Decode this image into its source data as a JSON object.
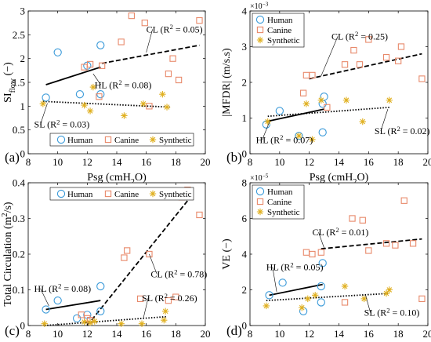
{
  "chart_data": [
    {
      "id": "a",
      "type": "scatter",
      "panel_label": "(a)",
      "xlabel": "Psg (cmH2O)",
      "ylabel": "SIflow (−)",
      "xlim": [
        8,
        20
      ],
      "ylim": [
        0,
        3
      ],
      "xticks": [
        8,
        10,
        12,
        14,
        16,
        18,
        20
      ],
      "yticks": [
        0,
        0.5,
        1,
        1.5,
        2,
        2.5,
        3
      ],
      "tick_labels_x": [
        "8",
        "10",
        "12",
        "14",
        "16",
        "18",
        "20"
      ],
      "tick_labels_y": [
        "0",
        "0.5",
        "1",
        "1.5",
        "2",
        "2.5",
        "3"
      ],
      "exponent": "",
      "legend": {
        "placement": "bottom",
        "horizontal": true,
        "entries": [
          "Human",
          "Canine",
          "Synthetic"
        ]
      },
      "series": [
        {
          "name": "Human",
          "marker": "circle",
          "color": "#3a9ad9",
          "points": [
            [
              9.2,
              1.18
            ],
            [
              10.0,
              2.13
            ],
            [
              11.5,
              1.25
            ],
            [
              12.0,
              1.85
            ],
            [
              12.9,
              2.28
            ],
            [
              12.9,
              1.25
            ]
          ]
        },
        {
          "name": "Canine",
          "marker": "square",
          "color": "#e8896a",
          "points": [
            [
              11.8,
              1.82
            ],
            [
              12.2,
              1.88
            ],
            [
              12.8,
              1.2
            ],
            [
              13.0,
              1.85
            ],
            [
              14.3,
              2.35
            ],
            [
              15.0,
              2.9
            ],
            [
              15.9,
              2.75
            ],
            [
              16.2,
              1.0
            ],
            [
              17.5,
              1.68
            ],
            [
              17.8,
              2.0
            ],
            [
              18.2,
              1.55
            ],
            [
              19.6,
              2.8
            ]
          ]
        },
        {
          "name": "Synthetic",
          "marker": "star",
          "color": "#e0b020",
          "points": [
            [
              9.0,
              1.05
            ],
            [
              11.8,
              1.02
            ],
            [
              12.2,
              0.9
            ],
            [
              12.4,
              1.4
            ],
            [
              14.5,
              0.8
            ],
            [
              15.8,
              1.05
            ],
            [
              17.1,
              1.25
            ],
            [
              17.4,
              0.98
            ]
          ]
        }
      ],
      "fits": [
        {
          "label": "CL (R2 = 0.05)",
          "style": "dashed",
          "from": [
            13.0,
            1.9
          ],
          "to": [
            19.6,
            2.28
          ],
          "text_at": [
            16.0,
            2.55
          ],
          "leader_to": [
            16.0,
            2.13
          ]
        },
        {
          "label": "HL (R2 = 0.08)",
          "style": "solid",
          "from": [
            9.2,
            1.45
          ],
          "to": [
            12.9,
            1.82
          ],
          "text_at": [
            12.5,
            1.38
          ],
          "leader_to": [
            12.4,
            1.68
          ]
        },
        {
          "label": "SL (R2 = 0.03)",
          "style": "dotted",
          "from": [
            9.0,
            1.1
          ],
          "to": [
            17.6,
            0.98
          ],
          "text_at": [
            8.4,
            0.55
          ],
          "leader_to": [
            9.3,
            1.06
          ]
        }
      ]
    },
    {
      "id": "b",
      "type": "scatter",
      "panel_label": "(b)",
      "xlabel": "Psg (cmH2O)",
      "ylabel": "|MFDR| (m/s.s)",
      "xlim": [
        8,
        20
      ],
      "ylim": [
        0,
        0.004
      ],
      "xticks": [
        8,
        10,
        12,
        14,
        16,
        18,
        20
      ],
      "yticks": [
        0,
        0.001,
        0.002,
        0.003,
        0.004
      ],
      "tick_labels_x": [
        "8",
        "10",
        "12",
        "14",
        "16",
        "18",
        "20"
      ],
      "tick_labels_y": [
        "0",
        "1",
        "2",
        "3",
        "4"
      ],
      "exponent": "×10−3",
      "legend": {
        "placement": "top-left",
        "horizontal": false,
        "entries": [
          "Human",
          "Canine",
          "Synthetic"
        ]
      },
      "series": [
        {
          "name": "Human",
          "marker": "circle",
          "color": "#3a9ad9",
          "points": [
            [
              9.1,
              0.00082
            ],
            [
              10.0,
              0.0012
            ],
            [
              11.3,
              0.0005
            ],
            [
              12.9,
              0.0014
            ],
            [
              13.0,
              0.0016
            ],
            [
              12.9,
              0.0006
            ]
          ]
        },
        {
          "name": "Canine",
          "marker": "square",
          "color": "#e8896a",
          "points": [
            [
              11.6,
              0.0017
            ],
            [
              11.8,
              0.0022
            ],
            [
              12.2,
              0.0022
            ],
            [
              13.2,
              0.0013
            ],
            [
              14.4,
              0.0025
            ],
            [
              15.0,
              0.0029
            ],
            [
              15.4,
              0.0025
            ],
            [
              16.0,
              0.0032
            ],
            [
              17.2,
              0.0027
            ],
            [
              18.0,
              0.0026
            ],
            [
              18.2,
              0.003
            ],
            [
              19.6,
              0.0021
            ]
          ]
        },
        {
          "name": "Synthetic",
          "marker": "star",
          "color": "#e0b020",
          "points": [
            [
              9.2,
              0.0009
            ],
            [
              11.3,
              0.0005
            ],
            [
              11.8,
              0.0014
            ],
            [
              12.2,
              0.0004
            ],
            [
              12.8,
              0.0015
            ],
            [
              14.5,
              0.0015
            ],
            [
              15.6,
              0.0009
            ],
            [
              17.4,
              0.0015
            ]
          ]
        }
      ],
      "fits": [
        {
          "label": "CL (R2 = 0.25)",
          "style": "dashed",
          "from": [
            12.0,
            0.0021
          ],
          "to": [
            19.6,
            0.0028
          ],
          "text_at": [
            13.5,
            0.0032
          ],
          "leader_to": [
            12.8,
            0.00218
          ]
        },
        {
          "label": "HL (R2 = 0.07)",
          "style": "solid",
          "from": [
            9.1,
            0.0009
          ],
          "to": [
            13.0,
            0.00125
          ],
          "text_at": [
            8.4,
            0.0003
          ],
          "leader_to": [
            9.3,
            0.00088
          ]
        },
        {
          "label": "SL (R2 = 0.02)",
          "style": "dotted",
          "from": [
            9.2,
            0.00105
          ],
          "to": [
            17.4,
            0.0013
          ],
          "text_at": [
            16.4,
            0.00055
          ],
          "leader_to": [
            17.3,
            0.00125
          ]
        }
      ]
    },
    {
      "id": "c",
      "type": "scatter",
      "panel_label": "(c)",
      "xlabel": "Psg (cmH2O)",
      "ylabel": "Total Circulation (m2/s)",
      "xlim": [
        8,
        20
      ],
      "ylim": [
        0,
        0.4
      ],
      "xticks": [
        8,
        10,
        12,
        14,
        16,
        18,
        20
      ],
      "yticks": [
        0,
        0.1,
        0.2,
        0.3,
        0.4
      ],
      "tick_labels_x": [
        "8",
        "10",
        "12",
        "14",
        "16",
        "18",
        "20"
      ],
      "tick_labels_y": [
        "0",
        "0.1",
        "0.2",
        "0.3",
        "0.4"
      ],
      "exponent": "",
      "legend": {
        "placement": "top",
        "horizontal": true,
        "entries": [
          "Human",
          "Canine",
          "Synthetic"
        ]
      },
      "series": [
        {
          "name": "Human",
          "marker": "circle",
          "color": "#3a9ad9",
          "points": [
            [
              9.2,
              0.045
            ],
            [
              10.0,
              0.07
            ],
            [
              11.3,
              0.02
            ],
            [
              12.9,
              0.11
            ],
            [
              12.9,
              0.04
            ],
            [
              12.0,
              0.03
            ]
          ]
        },
        {
          "name": "Canine",
          "marker": "square",
          "color": "#e8896a",
          "points": [
            [
              11.6,
              0.03
            ],
            [
              12.0,
              0.02
            ],
            [
              12.2,
              0.015
            ],
            [
              14.5,
              0.19
            ],
            [
              14.7,
              0.21
            ],
            [
              15.6,
              0.075
            ],
            [
              16.2,
              0.2
            ],
            [
              17.5,
              0.07
            ],
            [
              18.0,
              0.08
            ],
            [
              18.4,
              0.36
            ],
            [
              18.8,
              0.38
            ],
            [
              19.6,
              0.31
            ]
          ]
        },
        {
          "name": "Synthetic",
          "marker": "star",
          "color": "#e0b020",
          "points": [
            [
              9.1,
              0.005
            ],
            [
              11.8,
              0.01
            ],
            [
              12.2,
              0.008
            ],
            [
              12.5,
              0.012
            ],
            [
              14.3,
              0.005
            ],
            [
              15.7,
              0.005
            ],
            [
              17.2,
              0.015
            ],
            [
              17.3,
              0.04
            ]
          ]
        }
      ],
      "fits": [
        {
          "label": "CL (R2 = 0.78)",
          "style": "dashed",
          "from": [
            12.0,
            0.0
          ],
          "to": [
            19.0,
            0.36
          ],
          "text_at": [
            16.3,
            0.135
          ],
          "leader_to": [
            16.2,
            0.2
          ]
        },
        {
          "label": "HL (R2 = 0.08)",
          "style": "solid",
          "from": [
            9.2,
            0.045
          ],
          "to": [
            12.9,
            0.07
          ],
          "text_at": [
            8.4,
            0.095
          ],
          "leader_to": [
            9.4,
            0.055
          ]
        },
        {
          "label": "SL (R2 = 0.26)",
          "style": "dotted",
          "from": [
            9.1,
            0.0
          ],
          "to": [
            17.4,
            0.025
          ],
          "text_at": [
            15.7,
            0.068
          ],
          "leader_to": [
            15.8,
            0.02
          ]
        }
      ]
    },
    {
      "id": "d",
      "type": "scatter",
      "panel_label": "(d)",
      "xlabel": "Psg (cmH2O)",
      "ylabel": "VE (−)",
      "xlim": [
        8,
        20
      ],
      "ylim": [
        0,
        8e-05
      ],
      "xticks": [
        8,
        10,
        12,
        14,
        16,
        18,
        20
      ],
      "yticks": [
        0,
        2e-05,
        4e-05,
        6e-05,
        8e-05
      ],
      "tick_labels_x": [
        "8",
        "10",
        "12",
        "14",
        "16",
        "18",
        "20"
      ],
      "tick_labels_y": [
        "0",
        "2",
        "4",
        "6",
        "8"
      ],
      "exponent": "×10−5",
      "legend": {
        "placement": "top-left",
        "horizontal": false,
        "entries": [
          "Human",
          "Canine",
          "Synthetic"
        ]
      },
      "series": [
        {
          "name": "Human",
          "marker": "circle",
          "color": "#3a9ad9",
          "points": [
            [
              9.3,
              1.7e-05
            ],
            [
              10.2,
              2.4e-05
            ],
            [
              11.6,
              8e-06
            ],
            [
              12.9,
              3.5e-05
            ],
            [
              12.8,
              2.2e-05
            ],
            [
              12.8,
              1.3e-05
            ]
          ]
        },
        {
          "name": "Canine",
          "marker": "square",
          "color": "#e8896a",
          "points": [
            [
              11.8,
              4.1e-05
            ],
            [
              12.2,
              4e-05
            ],
            [
              12.8,
              4.1e-05
            ],
            [
              14.4,
              1.3e-05
            ],
            [
              14.9,
              6e-05
            ],
            [
              15.6,
              5.9e-05
            ],
            [
              16.0,
              4.2e-05
            ],
            [
              17.2,
              4.6e-05
            ],
            [
              17.8,
              4.5e-05
            ],
            [
              18.4,
              7e-05
            ],
            [
              19.6,
              1.5e-05
            ],
            [
              19.0,
              4.6e-05
            ]
          ]
        },
        {
          "name": "Synthetic",
          "marker": "star",
          "color": "#e0b020",
          "points": [
            [
              9.1,
              1.1e-05
            ],
            [
              11.5,
              1e-05
            ],
            [
              11.9,
              1.5e-05
            ],
            [
              12.4,
              1.7e-05
            ],
            [
              14.4,
              2.2e-05
            ],
            [
              15.7,
              1.5e-05
            ],
            [
              17.2,
              1.8e-05
            ],
            [
              17.4,
              2e-05
            ]
          ]
        }
      ],
      "fits": [
        {
          "label": "CL (R2 = 0.01)",
          "style": "dashed",
          "from": [
            12.8,
            4.3e-05
          ],
          "to": [
            19.6,
            4.85e-05
          ],
          "text_at": [
            12.2,
            5.05e-05
          ],
          "leader_to": [
            13.0,
            4.35e-05
          ]
        },
        {
          "label": "HL (R2 = 0.05)",
          "style": "solid",
          "from": [
            9.3,
            1.7e-05
          ],
          "to": [
            12.9,
            2.3e-05
          ],
          "text_at": [
            9.1,
            3.1e-05
          ],
          "leader_to": [
            9.8,
            1.9e-05
          ]
        },
        {
          "label": "SL (R2 = 0.10)",
          "style": "dotted",
          "from": [
            9.1,
            1.4e-05
          ],
          "to": [
            17.4,
            1.8e-05
          ],
          "text_at": [
            15.7,
            5.5e-06
          ],
          "leader_to": [
            15.8,
            1.7e-05
          ]
        }
      ]
    }
  ]
}
